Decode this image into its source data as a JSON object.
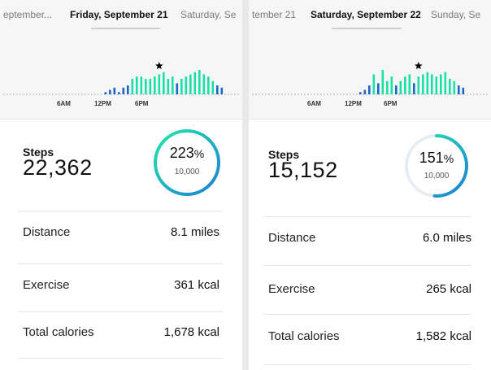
{
  "colors": {
    "bar_green": "#19e0a5",
    "bar_blue": "#1a66c8",
    "ring_start": "#1c7fd6",
    "ring_end": "#23e8a8",
    "star": "#000000"
  },
  "panels": [
    {
      "prev_date": "eptember...",
      "current_date": "Friday, September 21",
      "next_date": "Saturday, Se",
      "time_labels": [
        "6AM",
        "12PM",
        "6PM"
      ],
      "star_icon": "star-icon",
      "hourly_steps": [
        0,
        0,
        0,
        0,
        0,
        0,
        0,
        1,
        2,
        3,
        1,
        3,
        4,
        7,
        8,
        8,
        7,
        7,
        8,
        9,
        10,
        7,
        8,
        5,
        7,
        8,
        9,
        10,
        11,
        9,
        8,
        6,
        4,
        3
      ],
      "steps_label": "Steps",
      "steps_value": "22,362",
      "percent": "223",
      "percent_symbol": "%",
      "percent_fraction": 1.0,
      "goal": "10,000",
      "rows": [
        {
          "label": "Distance",
          "value": "8.1 miles"
        },
        {
          "label": "Exercise",
          "value": "361 kcal"
        },
        {
          "label": "Total calories",
          "value": "1,678 kcal"
        }
      ]
    },
    {
      "prev_date": "tember 21",
      "current_date": "Saturday, September 22",
      "next_date": "Sunday, Se",
      "time_labels": [
        "6AM",
        "12PM",
        "6PM"
      ],
      "star_icon": "star-icon",
      "hourly_steps": [
        0,
        0,
        0,
        0,
        0,
        0,
        0,
        0,
        1,
        2,
        4,
        9,
        5,
        11,
        6,
        8,
        4,
        6,
        8,
        9,
        5,
        8,
        9,
        10,
        9,
        8,
        9,
        10,
        7,
        6,
        4,
        3,
        0,
        0
      ],
      "steps_label": "Steps",
      "steps_value": "15,152",
      "percent": "151",
      "percent_symbol": "%",
      "percent_fraction": 0.51,
      "goal": "10,000",
      "rows": [
        {
          "label": "Distance",
          "value": "6.0 miles"
        },
        {
          "label": "Exercise",
          "value": "265 kcal"
        },
        {
          "label": "Total calories",
          "value": "1,582 kcal"
        }
      ]
    }
  ]
}
